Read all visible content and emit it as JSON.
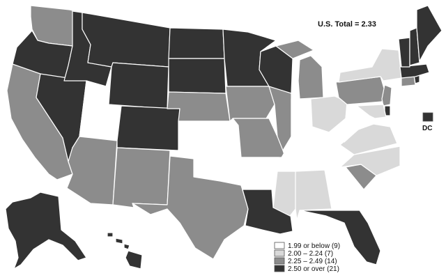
{
  "total_label": "U.S. Total = 2.33",
  "dc_label": "DC",
  "colors": {
    "cat1": "#ffffff",
    "cat2": "#d9d9d9",
    "cat3": "#8c8c8c",
    "cat4": "#333333",
    "border": "#ffffff",
    "legend_border": "#555555"
  },
  "legend": [
    {
      "label": "1.99 or below (9)",
      "category": "cat1"
    },
    {
      "label": "2.00 – 2.24 (7)",
      "category": "cat2"
    },
    {
      "label": "2.25 – 2.49 (14)",
      "category": "cat3"
    },
    {
      "label": "2.50 or over (21)",
      "category": "cat4"
    }
  ],
  "state_categories": {
    "WA": "cat3",
    "OR": "cat4",
    "CA": "cat3",
    "NV": "cat4",
    "ID": "cat4",
    "MT": "cat4",
    "WY": "cat4",
    "UT": "cat1",
    "CO": "cat4",
    "AZ": "cat3",
    "NM": "cat3",
    "ND": "cat4",
    "SD": "cat4",
    "NE": "cat3",
    "KS": "cat1",
    "OK": "cat1",
    "TX": "cat3",
    "MN": "cat4",
    "IA": "cat3",
    "MO": "cat3",
    "AR": "cat1",
    "LA": "cat4",
    "WI": "cat4",
    "IL": "cat3",
    "MI": "cat3",
    "IN": "cat1",
    "OH": "cat2",
    "KY": "cat1",
    "TN": "cat1",
    "MS": "cat2",
    "AL": "cat2",
    "GA": "cat1",
    "FL": "cat4",
    "SC": "cat3",
    "NC": "cat2",
    "VA": "cat2",
    "WV": "cat1",
    "PA": "cat3",
    "NY": "cat2",
    "ME": "cat4",
    "VT": "cat4",
    "NH": "cat4",
    "MA": "cat4",
    "CT": "cat3",
    "RI": "cat4",
    "NJ": "cat3",
    "DE": "cat4",
    "MD": "cat2",
    "AK": "cat4",
    "HI": "cat4",
    "DC": "cat4"
  }
}
